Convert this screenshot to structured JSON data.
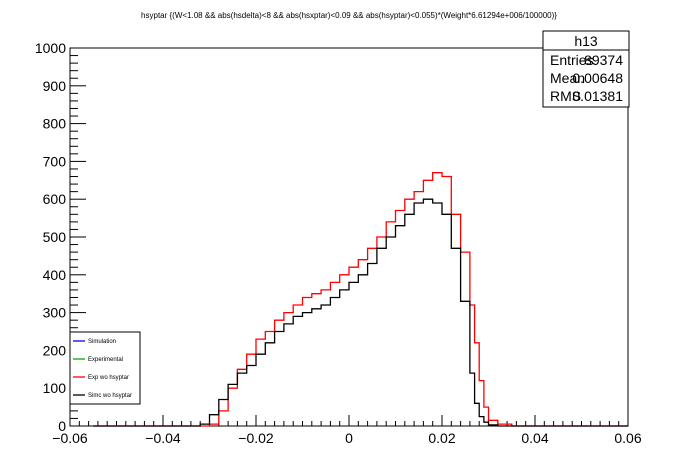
{
  "chart_data": {
    "type": "histogram",
    "title": "hsyptar {(W<1.08 && abs(hsdelta)<8 && abs(hsxptar)<0.09 && abs(hsyptar)<0.055)*(Weight*6.61294e+006/100000)}",
    "xlim": [
      -0.06,
      0.06
    ],
    "ylim": [
      0,
      1000
    ],
    "x_ticks": [
      "−0.06",
      "−0.04",
      "−0.02",
      "0",
      "0.02",
      "0.04",
      "0.06"
    ],
    "y_ticks": [
      "0",
      "100",
      "200",
      "300",
      "400",
      "500",
      "600",
      "700",
      "800",
      "900",
      "1000"
    ],
    "grid": false,
    "legend_position": "bottom-left",
    "legend": [
      {
        "label": "Simulation",
        "color": "#0000ff"
      },
      {
        "label": "Experimental",
        "color": "#00aa00"
      },
      {
        "label": "Exp wo hsyptar",
        "color": "#ff0000"
      },
      {
        "label": "Simc wo hsyptar",
        "color": "#000000"
      }
    ],
    "stats_box": {
      "name": "h13",
      "rows": [
        {
          "label": "Entries",
          "value": "89374"
        },
        {
          "label": "Mean",
          "value": "0.00648"
        },
        {
          "label": "RMS",
          "value": "0.01381"
        }
      ]
    },
    "series": [
      {
        "name": "Exp wo hsyptar",
        "color": "#ff0000",
        "x": [
          -0.055,
          -0.045,
          -0.035,
          -0.03,
          -0.028,
          -0.026,
          -0.024,
          -0.022,
          -0.02,
          -0.018,
          -0.016,
          -0.014,
          -0.012,
          -0.01,
          -0.008,
          -0.006,
          -0.004,
          -0.002,
          0.0,
          0.002,
          0.004,
          0.006,
          0.008,
          0.01,
          0.012,
          0.014,
          0.016,
          0.018,
          0.02,
          0.022,
          0.024,
          0.026,
          0.027,
          0.028,
          0.029,
          0.03,
          0.032,
          0.035,
          0.045,
          0.055
        ],
        "y": [
          0,
          0,
          0,
          5,
          40,
          100,
          150,
          190,
          230,
          250,
          280,
          300,
          320,
          340,
          350,
          360,
          380,
          400,
          420,
          440,
          470,
          500,
          540,
          570,
          600,
          620,
          650,
          670,
          660,
          560,
          460,
          320,
          220,
          120,
          50,
          15,
          5,
          0,
          0,
          0
        ]
      },
      {
        "name": "Simc wo hsyptar",
        "color": "#000000",
        "x": [
          -0.055,
          -0.045,
          -0.035,
          -0.032,
          -0.03,
          -0.028,
          -0.026,
          -0.024,
          -0.022,
          -0.02,
          -0.018,
          -0.016,
          -0.014,
          -0.012,
          -0.01,
          -0.008,
          -0.006,
          -0.004,
          -0.002,
          0.0,
          0.002,
          0.004,
          0.006,
          0.008,
          0.01,
          0.012,
          0.014,
          0.016,
          0.018,
          0.02,
          0.022,
          0.024,
          0.026,
          0.027,
          0.028,
          0.029,
          0.03,
          0.032,
          0.045,
          0.055
        ],
        "y": [
          0,
          0,
          0,
          5,
          30,
          70,
          110,
          140,
          160,
          190,
          220,
          250,
          270,
          290,
          300,
          310,
          320,
          340,
          360,
          380,
          400,
          430,
          470,
          500,
          530,
          560,
          590,
          600,
          590,
          560,
          470,
          330,
          140,
          60,
          25,
          10,
          3,
          0,
          0,
          0
        ]
      }
    ]
  }
}
